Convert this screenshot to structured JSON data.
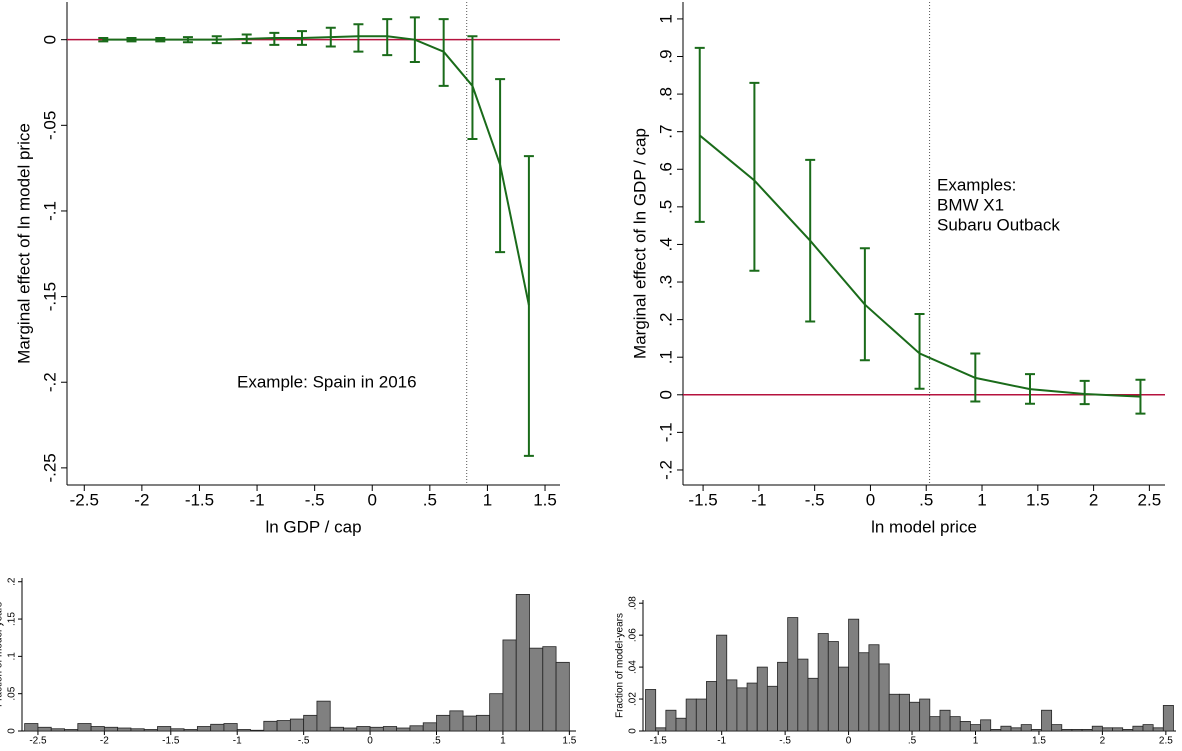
{
  "chart_data": [
    {
      "type": "line",
      "xlabel": "ln GDP / cap",
      "ylabel": "Marginal effect of ln model price",
      "x": [
        -2.335,
        -2.09,
        -1.84,
        -1.6,
        -1.35,
        -1.09,
        -0.85,
        -0.61,
        -0.36,
        -0.12,
        0.13,
        0.37,
        0.62,
        0.87,
        1.11,
        1.36
      ],
      "series": [
        {
          "color": "#1a6b1a",
          "values": [
            0,
            0,
            0,
            0,
            0,
            0.0005,
            0.001,
            0.001,
            0.0015,
            0.002,
            0.002,
            0,
            -0.007,
            -0.027,
            -0.073,
            -0.155
          ],
          "lower": [
            -0.001,
            -0.001,
            -0.001,
            -0.0015,
            -0.002,
            -0.002,
            -0.003,
            -0.003,
            -0.004,
            -0.007,
            -0.009,
            -0.013,
            -0.027,
            -0.058,
            -0.124,
            -0.243
          ],
          "upper": [
            0.001,
            0.001,
            0.001,
            0.0015,
            0.002,
            0.003,
            0.004,
            0.005,
            0.007,
            0.009,
            0.012,
            0.013,
            0.012,
            0.002,
            -0.023,
            -0.068
          ]
        }
      ],
      "hline": {
        "value": 0,
        "color": "#b5123e"
      },
      "vline": 0.82,
      "annotation": [
        "Example: Spain in 2016"
      ],
      "xlim": [
        -2.65,
        1.63
      ],
      "ylim": [
        -0.26,
        0.022
      ],
      "xticks": [
        -2.5,
        -2,
        -1.5,
        -1,
        {
          "value": -0.5,
          "label": "-.5"
        },
        0,
        {
          "value": 0.5,
          "label": ".5"
        },
        1,
        1.5
      ],
      "yticks": [
        {
          "value": -0.25,
          "label": "-.25"
        },
        {
          "value": -0.2,
          "label": "-.2"
        },
        {
          "value": -0.15,
          "label": "-.15"
        },
        {
          "value": -0.1,
          "label": "-.1"
        },
        {
          "value": -0.05,
          "label": "-.05"
        },
        0
      ]
    },
    {
      "type": "line",
      "xlabel": "ln model price",
      "ylabel": "Marginal effect of ln GDP / cap",
      "x": [
        -1.53,
        -1.04,
        -0.54,
        -0.05,
        0.44,
        0.94,
        1.43,
        1.92,
        2.42
      ],
      "series": [
        {
          "color": "#1a6b1a",
          "values": [
            0.69,
            0.57,
            0.41,
            0.24,
            0.11,
            0.045,
            0.015,
            0.002,
            -0.005
          ],
          "lower": [
            0.46,
            0.33,
            0.195,
            0.092,
            0.016,
            -0.018,
            -0.024,
            -0.025,
            -0.05
          ],
          "upper": [
            0.923,
            0.83,
            0.625,
            0.39,
            0.215,
            0.11,
            0.055,
            0.037,
            0.04
          ]
        }
      ],
      "hline": {
        "value": 0,
        "color": "#b5123e"
      },
      "vline": 0.53,
      "annotation": [
        "Examples:",
        "BMW X1",
        "Subaru Outback"
      ],
      "xlim": [
        -1.68,
        2.64
      ],
      "ylim": [
        -0.24,
        1.045
      ],
      "xticks": [
        -1.5,
        -1,
        {
          "value": -0.5,
          "label": "-.5"
        },
        0,
        {
          "value": 0.5,
          "label": ".5"
        },
        1,
        1.5,
        2,
        2.5
      ],
      "yticks": [
        {
          "value": -0.2,
          "label": "-.2"
        },
        {
          "value": -0.1,
          "label": "-.1"
        },
        0,
        {
          "value": 0.1,
          "label": ".1"
        },
        {
          "value": 0.2,
          "label": ".2"
        },
        {
          "value": 0.3,
          "label": ".3"
        },
        {
          "value": 0.4,
          "label": ".4"
        },
        {
          "value": 0.5,
          "label": ".5"
        },
        {
          "value": 0.6,
          "label": ".6"
        },
        {
          "value": 0.7,
          "label": ".7"
        },
        {
          "value": 0.8,
          "label": ".8"
        },
        {
          "value": 0.9,
          "label": ".9"
        },
        1
      ]
    },
    {
      "type": "histogram",
      "ylabel": "Fraction of model-years",
      "color": "#808080",
      "bins": [
        -2.6,
        -2.5,
        -2.4,
        -2.3,
        -2.2,
        -2.1,
        -2,
        -1.9,
        -1.8,
        -1.7,
        -1.6,
        -1.5,
        -1.4,
        -1.3,
        -1.2,
        -1.1,
        -1,
        -0.9,
        -0.8,
        -0.7,
        -0.6,
        -0.5,
        -0.4,
        -0.3,
        -0.2,
        -0.1,
        0,
        0.1,
        0.2,
        0.3,
        0.4,
        0.5,
        0.6,
        0.7,
        0.8,
        0.9,
        1,
        1.1,
        1.2,
        1.3,
        1.4,
        1.5
      ],
      "values": [
        0.01,
        0.005,
        0.003,
        0.002,
        0.01,
        0.006,
        0.005,
        0.004,
        0.003,
        0.002,
        0.006,
        0.003,
        0.002,
        0.006,
        0.009,
        0.01,
        0.002,
        0.001,
        0.013,
        0.014,
        0.016,
        0.021,
        0.04,
        0.005,
        0.004,
        0.006,
        0.005,
        0.006,
        0.004,
        0.007,
        0.011,
        0.021,
        0.027,
        0.02,
        0.021,
        0.05,
        0.122,
        0.183,
        0.111,
        0.113,
        0.092
      ],
      "xlim": [
        -2.62,
        1.55
      ],
      "ylim": [
        0,
        0.205
      ],
      "xticks": [
        -2.5,
        -2,
        -1.5,
        -1,
        {
          "value": -0.5,
          "label": "-.5"
        },
        0,
        {
          "value": 0.5,
          "label": ".5"
        },
        1,
        1.5
      ],
      "yticks": [
        0,
        {
          "value": 0.05,
          "label": ".05"
        },
        {
          "value": 0.1,
          "label": ".1"
        },
        {
          "value": 0.15,
          "label": ".15"
        },
        {
          "value": 0.2,
          "label": ".2"
        }
      ]
    },
    {
      "type": "histogram",
      "ylabel": "Fraction of model-years",
      "color": "#808080",
      "bins": [
        -1.6,
        -1.52,
        -1.44,
        -1.36,
        -1.28,
        -1.2,
        -1.12,
        -1.04,
        -0.96,
        -0.88,
        -0.8,
        -0.72,
        -0.64,
        -0.56,
        -0.48,
        -0.4,
        -0.32,
        -0.24,
        -0.16,
        -0.08,
        0,
        0.08,
        0.16,
        0.24,
        0.32,
        0.4,
        0.48,
        0.56,
        0.64,
        0.72,
        0.8,
        0.88,
        0.96,
        1.04,
        1.12,
        1.2,
        1.28,
        1.36,
        1.44,
        1.52,
        1.6,
        1.68,
        1.76,
        1.84,
        1.92,
        2,
        2.08,
        2.16,
        2.24,
        2.32,
        2.4,
        2.48,
        2.56
      ],
      "values": [
        0.026,
        0.002,
        0.013,
        0.008,
        0.02,
        0.02,
        0.031,
        0.06,
        0.032,
        0.027,
        0.03,
        0.04,
        0.028,
        0.043,
        0.071,
        0.045,
        0.033,
        0.061,
        0.056,
        0.04,
        0.07,
        0.049,
        0.054,
        0.042,
        0.023,
        0.023,
        0.018,
        0.02,
        0.009,
        0.013,
        0.009,
        0.006,
        0.004,
        0.007,
        0.001,
        0.003,
        0.002,
        0.004,
        0.001,
        0.013,
        0.004,
        0.001,
        0.001,
        0.001,
        0.003,
        0.002,
        0.002,
        0.001,
        0.003,
        0.004,
        0.002,
        0.016
      ],
      "xlim": [
        -1.62,
        2.58
      ],
      "ylim": [
        0,
        0.082
      ],
      "xticks": [
        -1.5,
        -1,
        {
          "value": -0.5,
          "label": "-.5"
        },
        0,
        {
          "value": 0.5,
          "label": ".5"
        },
        1,
        1.5,
        2,
        2.5
      ],
      "yticks": [
        0,
        {
          "value": 0.02,
          "label": ".02"
        },
        {
          "value": 0.04,
          "label": ".04"
        },
        {
          "value": 0.06,
          "label": ".06"
        },
        {
          "value": 0.08,
          "label": ".08"
        }
      ]
    }
  ]
}
